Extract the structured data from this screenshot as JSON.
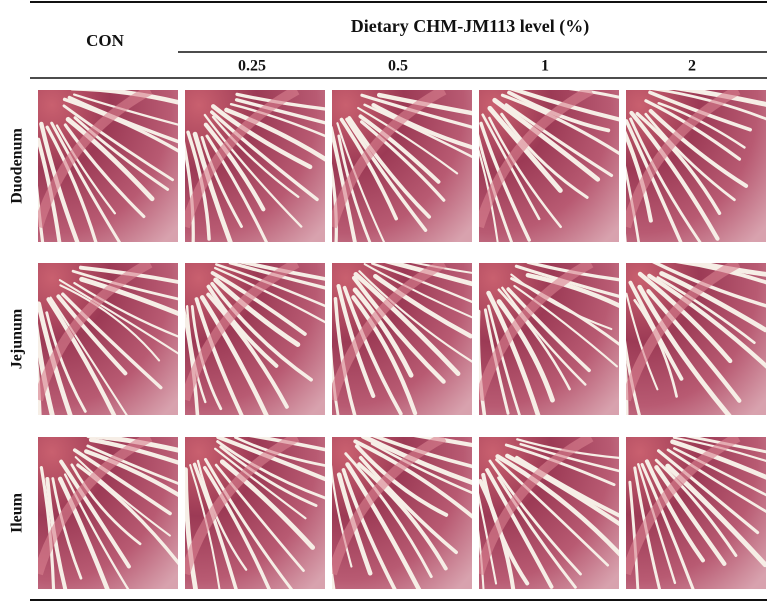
{
  "header": {
    "control": "CON",
    "group_title": "Dietary CHM-JM113 level (%)",
    "levels": [
      "0.25",
      "0.5",
      "1",
      "2"
    ]
  },
  "rows": [
    "Duodenum",
    "Jejunum",
    "Ileum"
  ]
}
